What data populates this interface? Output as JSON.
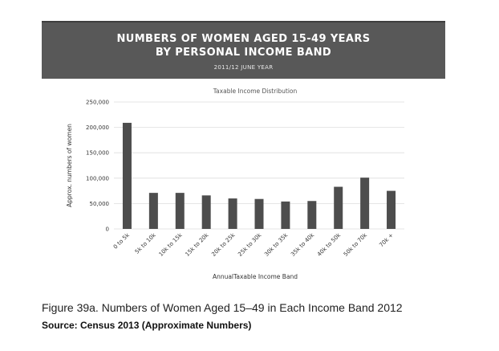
{
  "header": {
    "title": "NUMBERS OF WOMEN AGED 15-49 YEARS\nBY PERSONAL INCOME BAND",
    "subtitle": "2011/12 JUNE YEAR"
  },
  "caption": "Figure 39a. Numbers of Women Aged 15–49 in Each Income Band 2012",
  "source": "Source: Census 2013 (Approximate Numbers)",
  "colors": {
    "header_bg": "#585858",
    "bar": "#4d4d4d",
    "grid": "#dddddd"
  },
  "chart_data": {
    "type": "bar",
    "title": "Taxable Income Distribution",
    "xlabel": "AnnualTaxable Income Band",
    "ylabel": "Approx. numbers of women",
    "categories": [
      "0 to 5k",
      "5k to 10k",
      "10k to 15k",
      "15k to 20k",
      "20k to 25k",
      "25k to 30k",
      "30k to 35k",
      "35k to 40k",
      "40k to 50k",
      "50k to 70k",
      "70k +"
    ],
    "values": [
      209000,
      71000,
      71000,
      66000,
      60000,
      59000,
      54000,
      55000,
      83000,
      101000,
      75000
    ],
    "ylim": [
      0,
      250000
    ],
    "yticks": [
      0,
      50000,
      100000,
      150000,
      200000,
      250000
    ],
    "ytick_labels": [
      "0",
      "50,000",
      "100,000",
      "150,000",
      "200,000",
      "250,000"
    ],
    "grid": true,
    "legend": "none"
  }
}
